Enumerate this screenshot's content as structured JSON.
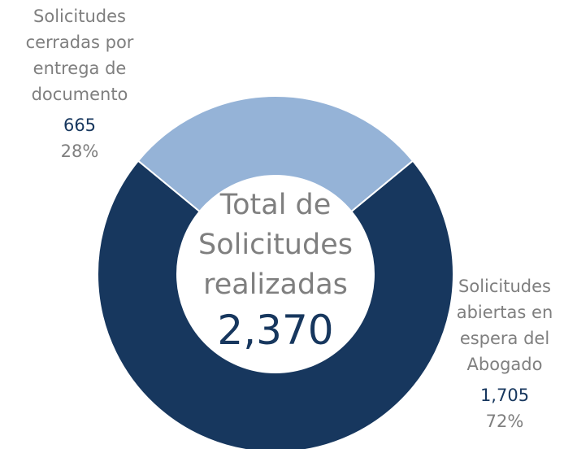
{
  "chart_data": {
    "type": "donut",
    "categories": [
      "Solicitudes cerradas por entrega de documento",
      "Solicitudes abiertas en espera del Abogado"
    ],
    "values": [
      665,
      1705
    ],
    "value_labels": [
      "665",
      "1,705"
    ],
    "percent_values": [
      28,
      72
    ],
    "percent_labels": [
      "28%",
      "72%"
    ],
    "colors": [
      "#95b3d7",
      "#17375e"
    ],
    "center_label": "Total de Solicitudes realizadas",
    "total": 2370,
    "total_label": "2,370"
  }
}
